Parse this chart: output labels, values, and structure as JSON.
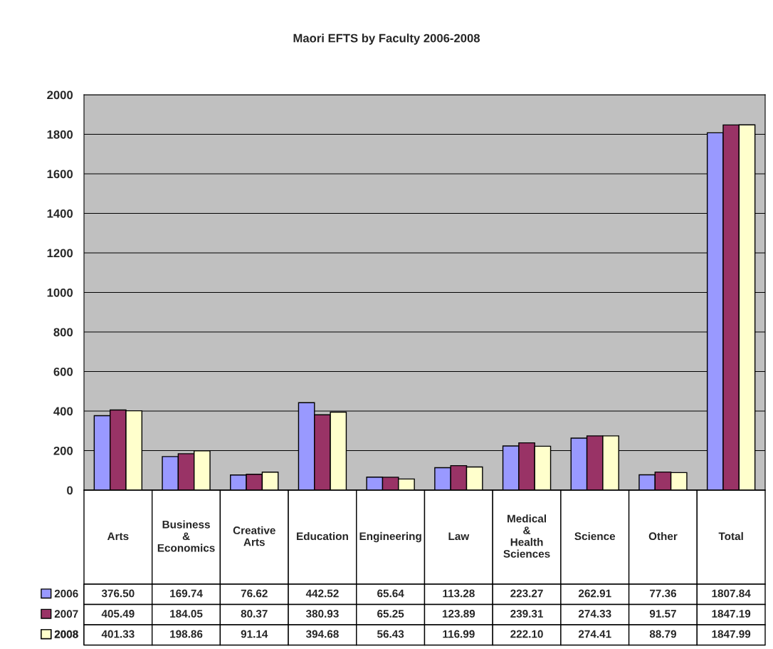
{
  "chart_data": {
    "type": "bar",
    "title": "Maori EFTS by Faculty 2006-2008",
    "categories": [
      "Arts",
      "Business & Economics",
      "Creative Arts",
      "Education",
      "Engineering",
      "Law",
      "Medical & Health Sciences",
      "Science",
      "Other",
      "Total"
    ],
    "series": [
      {
        "name": "2006",
        "color": "#9999ff",
        "values": [
          376.5,
          169.74,
          76.62,
          442.52,
          65.64,
          113.28,
          223.27,
          262.91,
          77.36,
          1807.84
        ],
        "value_labels": [
          "376.50",
          "169.74",
          "76.62",
          "442.52",
          "65.64",
          "113.28",
          "223.27",
          "262.91",
          "77.36",
          "1807.84"
        ]
      },
      {
        "name": "2007",
        "color": "#993366",
        "values": [
          405.49,
          184.05,
          80.37,
          380.93,
          65.25,
          123.89,
          239.31,
          274.33,
          91.57,
          1847.19
        ],
        "value_labels": [
          "405.49",
          "184.05",
          "80.37",
          "380.93",
          "65.25",
          "123.89",
          "239.31",
          "274.33",
          "91.57",
          "1847.19"
        ]
      },
      {
        "name": "2008",
        "color": "#ffffcc",
        "values": [
          401.33,
          198.86,
          91.14,
          394.68,
          56.43,
          116.99,
          222.1,
          274.41,
          88.79,
          1847.99
        ],
        "value_labels": [
          "401.33",
          "198.86",
          "91.14",
          "394.68",
          "56.43",
          "116.99",
          "222.10",
          "274.41",
          "88.79",
          "1847.99"
        ]
      }
    ],
    "ylim": [
      0,
      2000
    ],
    "yticks": [
      0,
      200,
      400,
      600,
      800,
      1000,
      1200,
      1400,
      1600,
      1800,
      2000
    ],
    "grid": "y",
    "legend": "bottom left"
  }
}
